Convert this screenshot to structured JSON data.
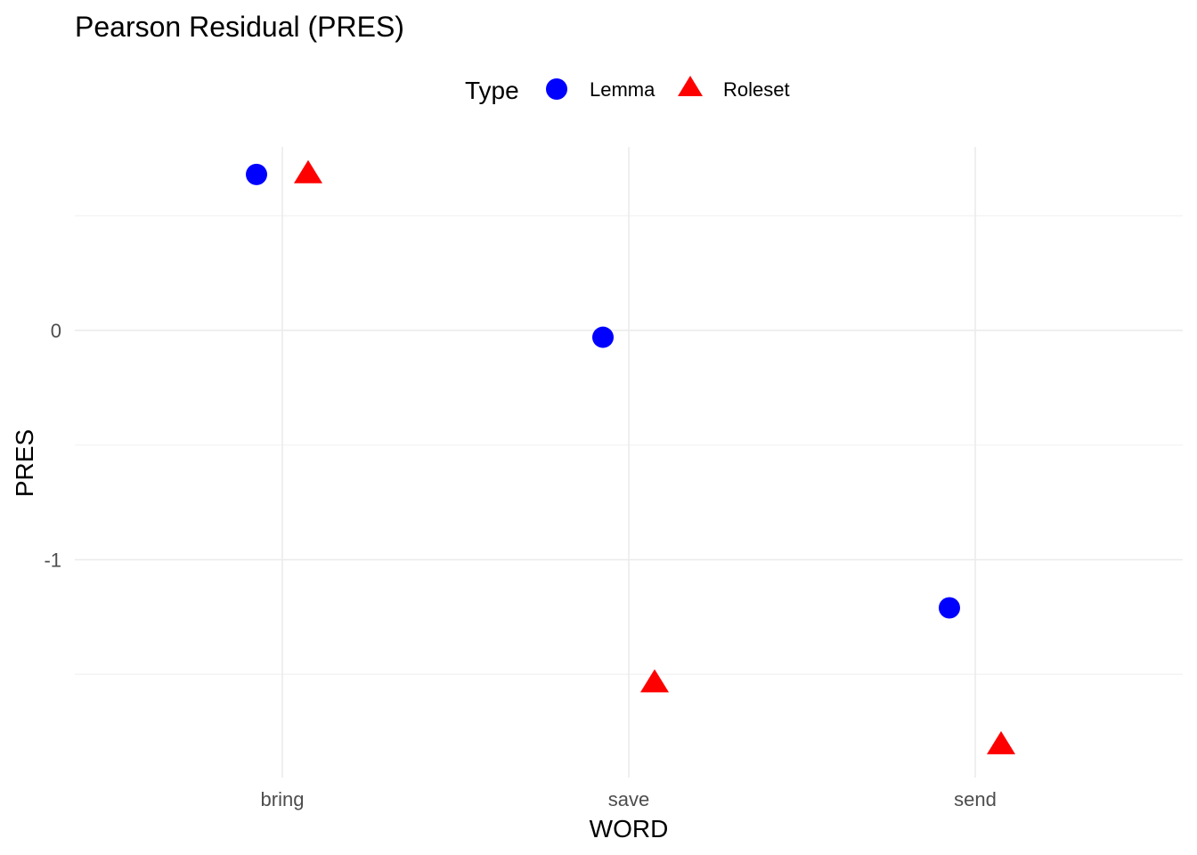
{
  "chart_data": {
    "type": "scatter",
    "title": "Pearson Residual (PRES)",
    "xlabel": "WORD",
    "ylabel": "PRES",
    "categories": [
      "bring",
      "save",
      "send"
    ],
    "ylim": [
      -1.95,
      0.8
    ],
    "yticks": [
      0,
      -1
    ],
    "ytick_labels": [
      "0",
      "-1"
    ],
    "grid": true,
    "legend": {
      "title": "Type",
      "position": "top",
      "entries": [
        {
          "label": "Lemma",
          "shape": "circle",
          "color": "#0000ff"
        },
        {
          "label": "Roleset",
          "shape": "triangle",
          "color": "#ff0000"
        }
      ]
    },
    "series": [
      {
        "name": "Lemma",
        "shape": "circle",
        "color": "#0000ff",
        "values": [
          0.68,
          -0.03,
          -1.21
        ]
      },
      {
        "name": "Roleset",
        "shape": "triangle",
        "color": "#ff0000",
        "values": [
          0.68,
          -1.54,
          -1.81
        ]
      }
    ]
  }
}
